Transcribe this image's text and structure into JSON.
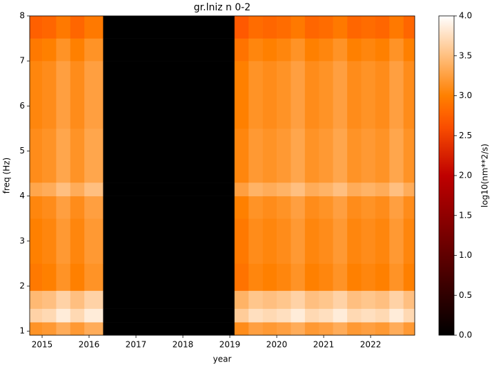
{
  "chart_data": {
    "type": "heatmap",
    "title": "gr.lniz n 0-2",
    "xlabel": "year",
    "ylabel": "freq (Hz)",
    "colorbar_label": "log10(nm**2/s)",
    "colormap": "gist_heat",
    "xlim": [
      2014.735,
      2022.94
    ],
    "ylim": [
      0.91,
      8
    ],
    "xticks": [
      2015,
      2016,
      2017,
      2018,
      2019,
      2020,
      2021,
      2022
    ],
    "yticks": [
      1,
      2,
      3,
      4,
      5,
      6,
      7,
      8
    ],
    "zlim": [
      0,
      4
    ],
    "zticks": [
      {
        "value": 0,
        "label": "0.0"
      },
      0.5,
      {
        "value": 1,
        "label": "1.0"
      },
      1.5,
      {
        "value": 2,
        "label": "2.0"
      },
      2.5,
      {
        "value": 3,
        "label": "3.0"
      },
      3.5,
      {
        "value": 4,
        "label": "4.0"
      }
    ],
    "xbins": [
      2014.735,
      2015.0,
      2015.3,
      2015.6,
      2015.9,
      2016.3,
      2019.1,
      2019.4,
      2019.7,
      2020.0,
      2020.3,
      2020.6,
      2020.9,
      2021.2,
      2021.5,
      2021.8,
      2022.1,
      2022.4,
      2022.7,
      2022.94
    ],
    "ybins": [
      0.91,
      1.2,
      1.5,
      1.9,
      2.5,
      3.5,
      4.0,
      4.3,
      5.5,
      7.0,
      7.5,
      8
    ],
    "values": [
      [
        3.15,
        3.2,
        3.35,
        3.2,
        3.35,
        0,
        3.1,
        3.25,
        3.2,
        3.25,
        3.35,
        3.2,
        3.25,
        3.35,
        3.2,
        3.25,
        3.2,
        3.35,
        3.2
      ],
      [
        3.65,
        3.7,
        3.85,
        3.7,
        3.85,
        0,
        3.6,
        3.75,
        3.7,
        3.75,
        3.85,
        3.7,
        3.75,
        3.85,
        3.7,
        3.75,
        3.7,
        3.85,
        3.7
      ],
      [
        3.45,
        3.5,
        3.65,
        3.5,
        3.65,
        0,
        3.4,
        3.55,
        3.5,
        3.55,
        3.65,
        3.5,
        3.55,
        3.65,
        3.5,
        3.55,
        3.5,
        3.65,
        3.5
      ],
      [
        2.95,
        3,
        3.15,
        3,
        3.15,
        0,
        2.9,
        3.05,
        3,
        3.05,
        3.15,
        3,
        3.05,
        3.15,
        3,
        3.05,
        3,
        3.15,
        3
      ],
      [
        3,
        3.05,
        3.2,
        3.05,
        3.2,
        0,
        2.95,
        3.1,
        3.05,
        3.1,
        3.2,
        3.05,
        3.1,
        3.2,
        3.05,
        3.1,
        3.05,
        3.2,
        3.05
      ],
      [
        3.05,
        3.1,
        3.25,
        3.1,
        3.25,
        0,
        3,
        3.15,
        3.1,
        3.15,
        3.25,
        3.1,
        3.15,
        3.25,
        3.1,
        3.15,
        3.1,
        3.25,
        3.1
      ],
      [
        3.3,
        3.35,
        3.5,
        3.35,
        3.5,
        0,
        3.25,
        3.4,
        3.35,
        3.4,
        3.5,
        3.35,
        3.4,
        3.5,
        3.35,
        3.4,
        3.35,
        3.5,
        3.35
      ],
      [
        3.1,
        3.15,
        3.3,
        3.15,
        3.3,
        0,
        3.05,
        3.2,
        3.15,
        3.2,
        3.3,
        3.15,
        3.2,
        3.3,
        3.15,
        3.2,
        3.15,
        3.3,
        3.15
      ],
      [
        3.05,
        3.1,
        3.25,
        3.1,
        3.25,
        0,
        3,
        3.15,
        3.1,
        3.15,
        3.25,
        3.1,
        3.15,
        3.25,
        3.1,
        3.15,
        3.1,
        3.25,
        3.1
      ],
      [
        2.95,
        3,
        3.15,
        3,
        3.15,
        0,
        2.9,
        3.05,
        3,
        3.05,
        3.15,
        3,
        3.05,
        3.15,
        3,
        3.05,
        3,
        3.15,
        3
      ],
      [
        2.75,
        2.8,
        2.95,
        2.8,
        2.95,
        0,
        2.7,
        2.85,
        2.8,
        2.85,
        2.95,
        2.8,
        2.85,
        2.95,
        2.8,
        2.85,
        2.8,
        2.95,
        2.8
      ]
    ]
  }
}
